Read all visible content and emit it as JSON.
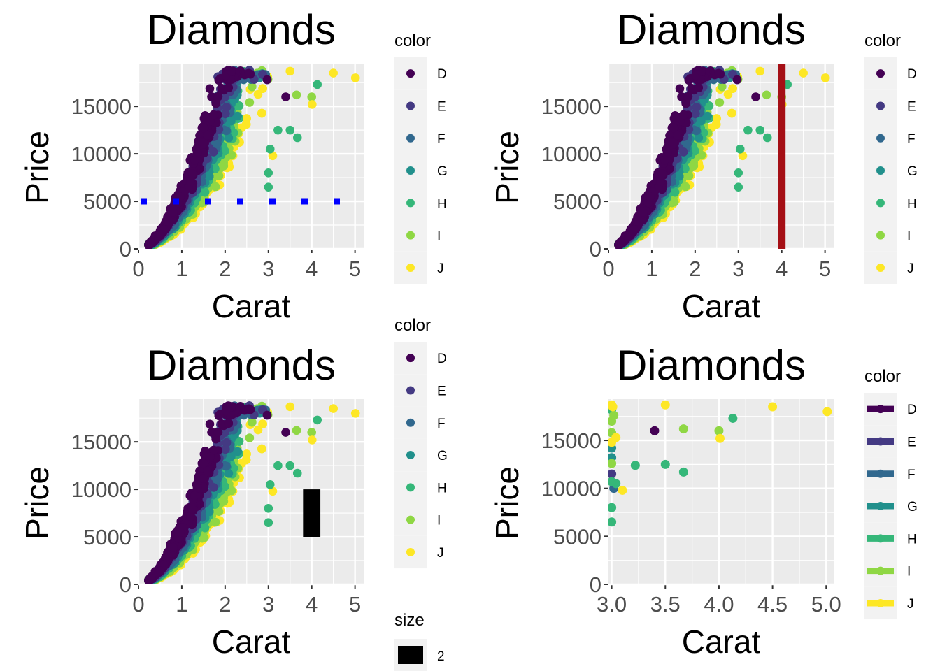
{
  "palette": {
    "D": "#440154",
    "E": "#443A83",
    "F": "#31688E",
    "G": "#21908C",
    "H": "#35B779",
    "I": "#8FD744",
    "J": "#FDE725"
  },
  "chart_data": [
    {
      "type": "scatter",
      "title": "Diamonds",
      "xlabel": "Carat",
      "ylabel": "Price",
      "xlim": [
        0,
        5.2
      ],
      "ylim": [
        0,
        19500
      ],
      "xticks": [
        0,
        1,
        2,
        3,
        4,
        5
      ],
      "xtick_labels": [
        "0",
        "1",
        "2",
        "3",
        "4",
        "5"
      ],
      "yticks": [
        0,
        5000,
        10000,
        15000
      ],
      "ytick_labels": [
        "0",
        "5000",
        "10000",
        "15000"
      ],
      "legend": {
        "title": "color",
        "position": "right",
        "key": "point",
        "labels": [
          "D",
          "E",
          "F",
          "G",
          "H",
          "I",
          "J"
        ]
      },
      "annotation": {
        "type": "hline",
        "y": 5000,
        "style": "dotted",
        "color": "#0000FF"
      },
      "highlight_points": [
        {
          "x": 3.4,
          "y": 16000,
          "color": "D"
        },
        {
          "x": 3.22,
          "y": 12500,
          "color": "H"
        },
        {
          "x": 3.5,
          "y": 12500,
          "color": "H"
        },
        {
          "x": 3.67,
          "y": 11700,
          "color": "H"
        },
        {
          "x": 4.0,
          "y": 16000,
          "color": "I"
        },
        {
          "x": 4.01,
          "y": 15200,
          "color": "J"
        },
        {
          "x": 4.13,
          "y": 17300,
          "color": "H"
        },
        {
          "x": 3.65,
          "y": 16200,
          "color": "I"
        },
        {
          "x": 4.5,
          "y": 18500,
          "color": "J"
        },
        {
          "x": 5.01,
          "y": 18000,
          "color": "J"
        },
        {
          "x": 3.5,
          "y": 18700,
          "color": "J"
        },
        {
          "x": 3.1,
          "y": 9800,
          "color": "J"
        },
        {
          "x": 3.04,
          "y": 10500,
          "color": "H"
        },
        {
          "x": 3.0,
          "y": 6500,
          "color": "H"
        },
        {
          "x": 3.0,
          "y": 8000,
          "color": "H"
        }
      ]
    },
    {
      "type": "scatter",
      "title": "Diamonds",
      "xlabel": "Carat",
      "ylabel": "Price",
      "xlim": [
        0,
        5.2
      ],
      "ylim": [
        0,
        19500
      ],
      "xticks": [
        0,
        1,
        2,
        3,
        4,
        5
      ],
      "xtick_labels": [
        "0",
        "1",
        "2",
        "3",
        "4",
        "5"
      ],
      "yticks": [
        0,
        5000,
        10000,
        15000
      ],
      "ytick_labels": [
        "0",
        "5000",
        "10000",
        "15000"
      ],
      "legend": {
        "title": "color",
        "position": "right",
        "key": "point",
        "labels": [
          "D",
          "E",
          "F",
          "G",
          "H",
          "I",
          "J"
        ]
      },
      "annotation": {
        "type": "vline",
        "x": 4,
        "style": "solid",
        "color": "#A50F15"
      },
      "highlight_points": [
        {
          "x": 3.4,
          "y": 16000,
          "color": "D"
        },
        {
          "x": 3.22,
          "y": 12500,
          "color": "H"
        },
        {
          "x": 3.5,
          "y": 12500,
          "color": "H"
        },
        {
          "x": 3.67,
          "y": 11700,
          "color": "H"
        },
        {
          "x": 4.0,
          "y": 16000,
          "color": "I"
        },
        {
          "x": 4.01,
          "y": 15200,
          "color": "J"
        },
        {
          "x": 4.13,
          "y": 17300,
          "color": "H"
        },
        {
          "x": 3.65,
          "y": 16200,
          "color": "I"
        },
        {
          "x": 4.5,
          "y": 18500,
          "color": "J"
        },
        {
          "x": 5.01,
          "y": 18000,
          "color": "J"
        },
        {
          "x": 3.5,
          "y": 18700,
          "color": "J"
        },
        {
          "x": 3.1,
          "y": 9800,
          "color": "J"
        },
        {
          "x": 3.04,
          "y": 10500,
          "color": "H"
        },
        {
          "x": 3.0,
          "y": 6500,
          "color": "H"
        },
        {
          "x": 3.0,
          "y": 8000,
          "color": "H"
        }
      ]
    },
    {
      "type": "scatter",
      "title": "Diamonds",
      "xlabel": "Carat",
      "ylabel": "Price",
      "xlim": [
        0,
        5.2
      ],
      "ylim": [
        0,
        19500
      ],
      "xticks": [
        0,
        1,
        2,
        3,
        4,
        5
      ],
      "xtick_labels": [
        "0",
        "1",
        "2",
        "3",
        "4",
        "5"
      ],
      "yticks": [
        0,
        5000,
        10000,
        15000
      ],
      "ytick_labels": [
        "0",
        "5000",
        "10000",
        "15000"
      ],
      "legend": {
        "title": "color",
        "position": "right",
        "key": "point",
        "labels": [
          "D",
          "E",
          "F",
          "G",
          "H",
          "I",
          "J"
        ]
      },
      "size_legend": {
        "title": "size",
        "labels": [
          "2"
        ]
      },
      "annotation": {
        "type": "rect",
        "xmin": 3.8,
        "xmax": 4.2,
        "ymin": 5000,
        "ymax": 10000,
        "color": "#000000"
      },
      "highlight_points": [
        {
          "x": 3.4,
          "y": 16000,
          "color": "D"
        },
        {
          "x": 3.22,
          "y": 12500,
          "color": "H"
        },
        {
          "x": 3.5,
          "y": 12500,
          "color": "H"
        },
        {
          "x": 3.67,
          "y": 11700,
          "color": "H"
        },
        {
          "x": 4.0,
          "y": 16000,
          "color": "I"
        },
        {
          "x": 4.01,
          "y": 15200,
          "color": "J"
        },
        {
          "x": 4.13,
          "y": 17300,
          "color": "H"
        },
        {
          "x": 3.65,
          "y": 16200,
          "color": "I"
        },
        {
          "x": 4.5,
          "y": 18500,
          "color": "J"
        },
        {
          "x": 5.01,
          "y": 18000,
          "color": "J"
        },
        {
          "x": 3.5,
          "y": 18700,
          "color": "J"
        },
        {
          "x": 3.1,
          "y": 9800,
          "color": "J"
        },
        {
          "x": 3.04,
          "y": 10500,
          "color": "H"
        },
        {
          "x": 3.0,
          "y": 6500,
          "color": "H"
        },
        {
          "x": 3.0,
          "y": 8000,
          "color": "H"
        }
      ]
    },
    {
      "type": "scatter",
      "title": "Diamonds",
      "xlabel": "Carat",
      "ylabel": "Price",
      "xlim": [
        2.97,
        5.07
      ],
      "ylim": [
        0,
        19300
      ],
      "xticks": [
        3.0,
        3.5,
        4.0,
        4.5,
        5.0
      ],
      "xtick_labels": [
        "3.0",
        "3.5",
        "4.0",
        "4.5",
        "5.0"
      ],
      "yticks": [
        0,
        5000,
        10000,
        15000
      ],
      "ytick_labels": [
        "0",
        "5000",
        "10000",
        "15000"
      ],
      "legend": {
        "title": "color",
        "position": "right",
        "key": "point-path",
        "labels": [
          "D",
          "E",
          "F",
          "G",
          "H",
          "I",
          "J"
        ]
      },
      "points": [
        {
          "x": 3.4,
          "y": 16000,
          "color": "D"
        },
        {
          "x": 3.0,
          "y": 11500,
          "color": "E"
        },
        {
          "x": 3.02,
          "y": 10000,
          "color": "F"
        },
        {
          "x": 3.0,
          "y": 13200,
          "color": "G"
        },
        {
          "x": 3.0,
          "y": 14200,
          "color": "G"
        },
        {
          "x": 3.22,
          "y": 12400,
          "color": "H"
        },
        {
          "x": 3.5,
          "y": 12500,
          "color": "H"
        },
        {
          "x": 3.67,
          "y": 11700,
          "color": "H"
        },
        {
          "x": 4.13,
          "y": 17300,
          "color": "H"
        },
        {
          "x": 3.04,
          "y": 10500,
          "color": "H"
        },
        {
          "x": 3.0,
          "y": 6500,
          "color": "H"
        },
        {
          "x": 3.0,
          "y": 8000,
          "color": "H"
        },
        {
          "x": 3.0,
          "y": 18200,
          "color": "H"
        },
        {
          "x": 3.0,
          "y": 10700,
          "color": "H"
        },
        {
          "x": 3.0,
          "y": 17000,
          "color": "I"
        },
        {
          "x": 3.0,
          "y": 15800,
          "color": "I"
        },
        {
          "x": 3.0,
          "y": 12600,
          "color": "I"
        },
        {
          "x": 3.67,
          "y": 16200,
          "color": "I"
        },
        {
          "x": 4.0,
          "y": 16000,
          "color": "I"
        },
        {
          "x": 3.02,
          "y": 17600,
          "color": "I"
        },
        {
          "x": 3.0,
          "y": 18700,
          "color": "J"
        },
        {
          "x": 3.04,
          "y": 15300,
          "color": "J"
        },
        {
          "x": 3.0,
          "y": 14800,
          "color": "J"
        },
        {
          "x": 3.01,
          "y": 18500,
          "color": "J"
        },
        {
          "x": 3.1,
          "y": 9800,
          "color": "J"
        },
        {
          "x": 3.5,
          "y": 18700,
          "color": "J"
        },
        {
          "x": 4.01,
          "y": 15200,
          "color": "J"
        },
        {
          "x": 4.5,
          "y": 18500,
          "color": "J"
        },
        {
          "x": 5.01,
          "y": 18000,
          "color": "J"
        }
      ]
    }
  ]
}
